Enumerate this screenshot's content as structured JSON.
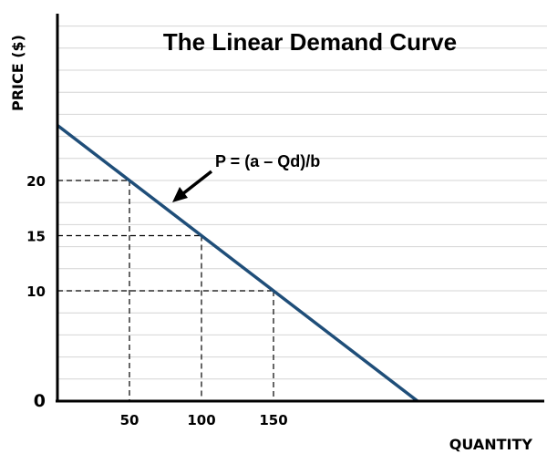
{
  "chart_data": {
    "type": "line",
    "title": "The Linear Demand Curve",
    "xlabel": "QUANTITY",
    "ylabel": "PRICE ($)",
    "origin_label": "0",
    "x_ticks": [
      50,
      100,
      150
    ],
    "y_ticks": [
      10,
      15,
      20
    ],
    "xlim": [
      0,
      340
    ],
    "ylim": [
      0,
      36
    ],
    "grid": "horizontal",
    "series": [
      {
        "x": [
          0,
          50,
          100,
          150,
          250
        ],
        "y": [
          25,
          20,
          15,
          10,
          0
        ],
        "color": "#1f4e79"
      }
    ],
    "reference_points": [
      {
        "x": 50,
        "y": 20
      },
      {
        "x": 100,
        "y": 15
      },
      {
        "x": 150,
        "y": 10
      }
    ],
    "annotation": {
      "text": "P = (a – Qd)/b",
      "points_to": {
        "x": 75,
        "y": 17.5
      }
    }
  }
}
